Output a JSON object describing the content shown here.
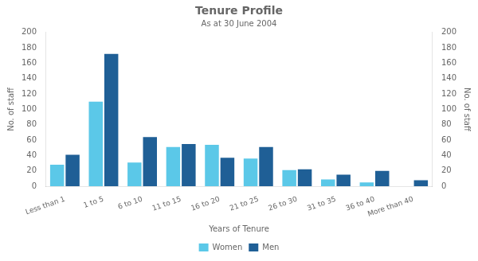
{
  "chart_data": {
    "type": "bar",
    "title": "Tenure Profile",
    "subtitle": "As at 30 June 2004",
    "xlabel": "Years of Tenure",
    "ylabel": "No. of staff",
    "y2label": "No. of staff",
    "categories": [
      "Less than 1",
      "1 to 5",
      "6 to 10",
      "11 to 15",
      "16 to 20",
      "21 to 25",
      "26 to 30",
      "31 to 35",
      "36 to 40",
      "More than 40"
    ],
    "series": [
      {
        "name": "Women",
        "color": "#5bc8e8",
        "values": [
          28,
          110,
          31,
          51,
          54,
          36,
          21,
          9,
          5,
          0
        ]
      },
      {
        "name": "Men",
        "color": "#1f5f96",
        "values": [
          41,
          172,
          64,
          55,
          37,
          51,
          22,
          15,
          20,
          8
        ]
      }
    ],
    "ylim": [
      0,
      200
    ],
    "yticks": [
      0,
      20,
      40,
      60,
      80,
      100,
      120,
      140,
      160,
      180,
      200
    ],
    "y2lim": [
      0,
      200
    ],
    "y2ticks": [
      0,
      20,
      40,
      60,
      80,
      100,
      120,
      140,
      160,
      180,
      200
    ],
    "grid": false,
    "legend": "bottom"
  }
}
